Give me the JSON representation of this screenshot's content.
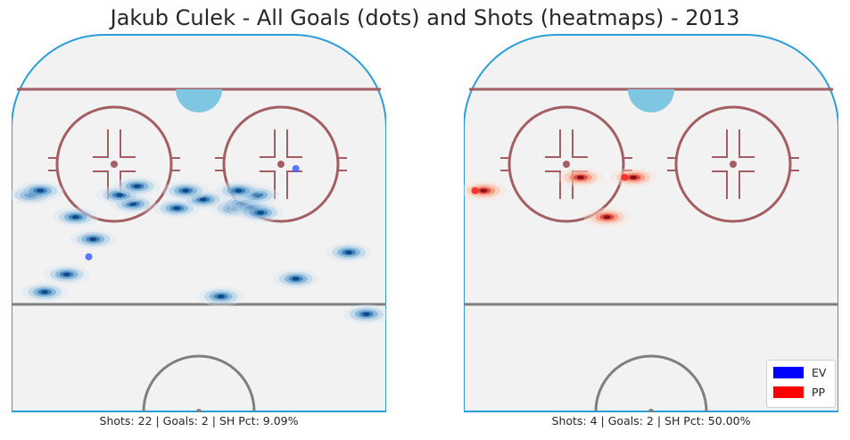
{
  "title": "Jakub Culek - All Goals (dots) and Shots (heatmaps) - 2013",
  "colors": {
    "ev": "#0000ff",
    "pp": "#ff0000"
  },
  "legend": {
    "placement": "bottom-right",
    "ev_label": "EV",
    "pp_label": "PP"
  },
  "chart_data": [
    {
      "type": "scatter",
      "name": "EV",
      "caption": "Shots: 22 | Goals: 2 | SH Pct: 9.09%",
      "goals": [
        {
          "x": 71,
          "y": 22
        },
        {
          "x": 51,
          "y": -25
        }
      ],
      "shots": [
        {
          "x": 65,
          "y": -38
        },
        {
          "x": 66,
          "y": -36
        },
        {
          "x": 60,
          "y": -28
        },
        {
          "x": 63,
          "y": -15
        },
        {
          "x": 65,
          "y": -18
        },
        {
          "x": 67,
          "y": -14
        },
        {
          "x": 62,
          "y": -5
        },
        {
          "x": 64,
          "y": 1
        },
        {
          "x": 66,
          "y": -3
        },
        {
          "x": 62,
          "y": 8
        },
        {
          "x": 63,
          "y": 10
        },
        {
          "x": 62,
          "y": 12
        },
        {
          "x": 65,
          "y": 13
        },
        {
          "x": 61,
          "y": 14
        },
        {
          "x": 66,
          "y": 9
        },
        {
          "x": 55,
          "y": -24
        },
        {
          "x": 43,
          "y": -35
        },
        {
          "x": 47,
          "y": -30
        },
        {
          "x": 38,
          "y": 38
        },
        {
          "x": 52,
          "y": 34
        },
        {
          "x": 46,
          "y": 22
        },
        {
          "x": 42,
          "y": 5
        }
      ]
    },
    {
      "type": "scatter",
      "name": "PP",
      "caption": "Shots: 4 | Goals: 2 | SH Pct: 50.00%",
      "goals": [
        {
          "x": 66,
          "y": -40
        },
        {
          "x": 69,
          "y": -6
        }
      ],
      "shots": [
        {
          "x": 66,
          "y": -38
        },
        {
          "x": 69,
          "y": -16
        },
        {
          "x": 69,
          "y": -4
        },
        {
          "x": 60,
          "y": -10
        }
      ]
    }
  ]
}
